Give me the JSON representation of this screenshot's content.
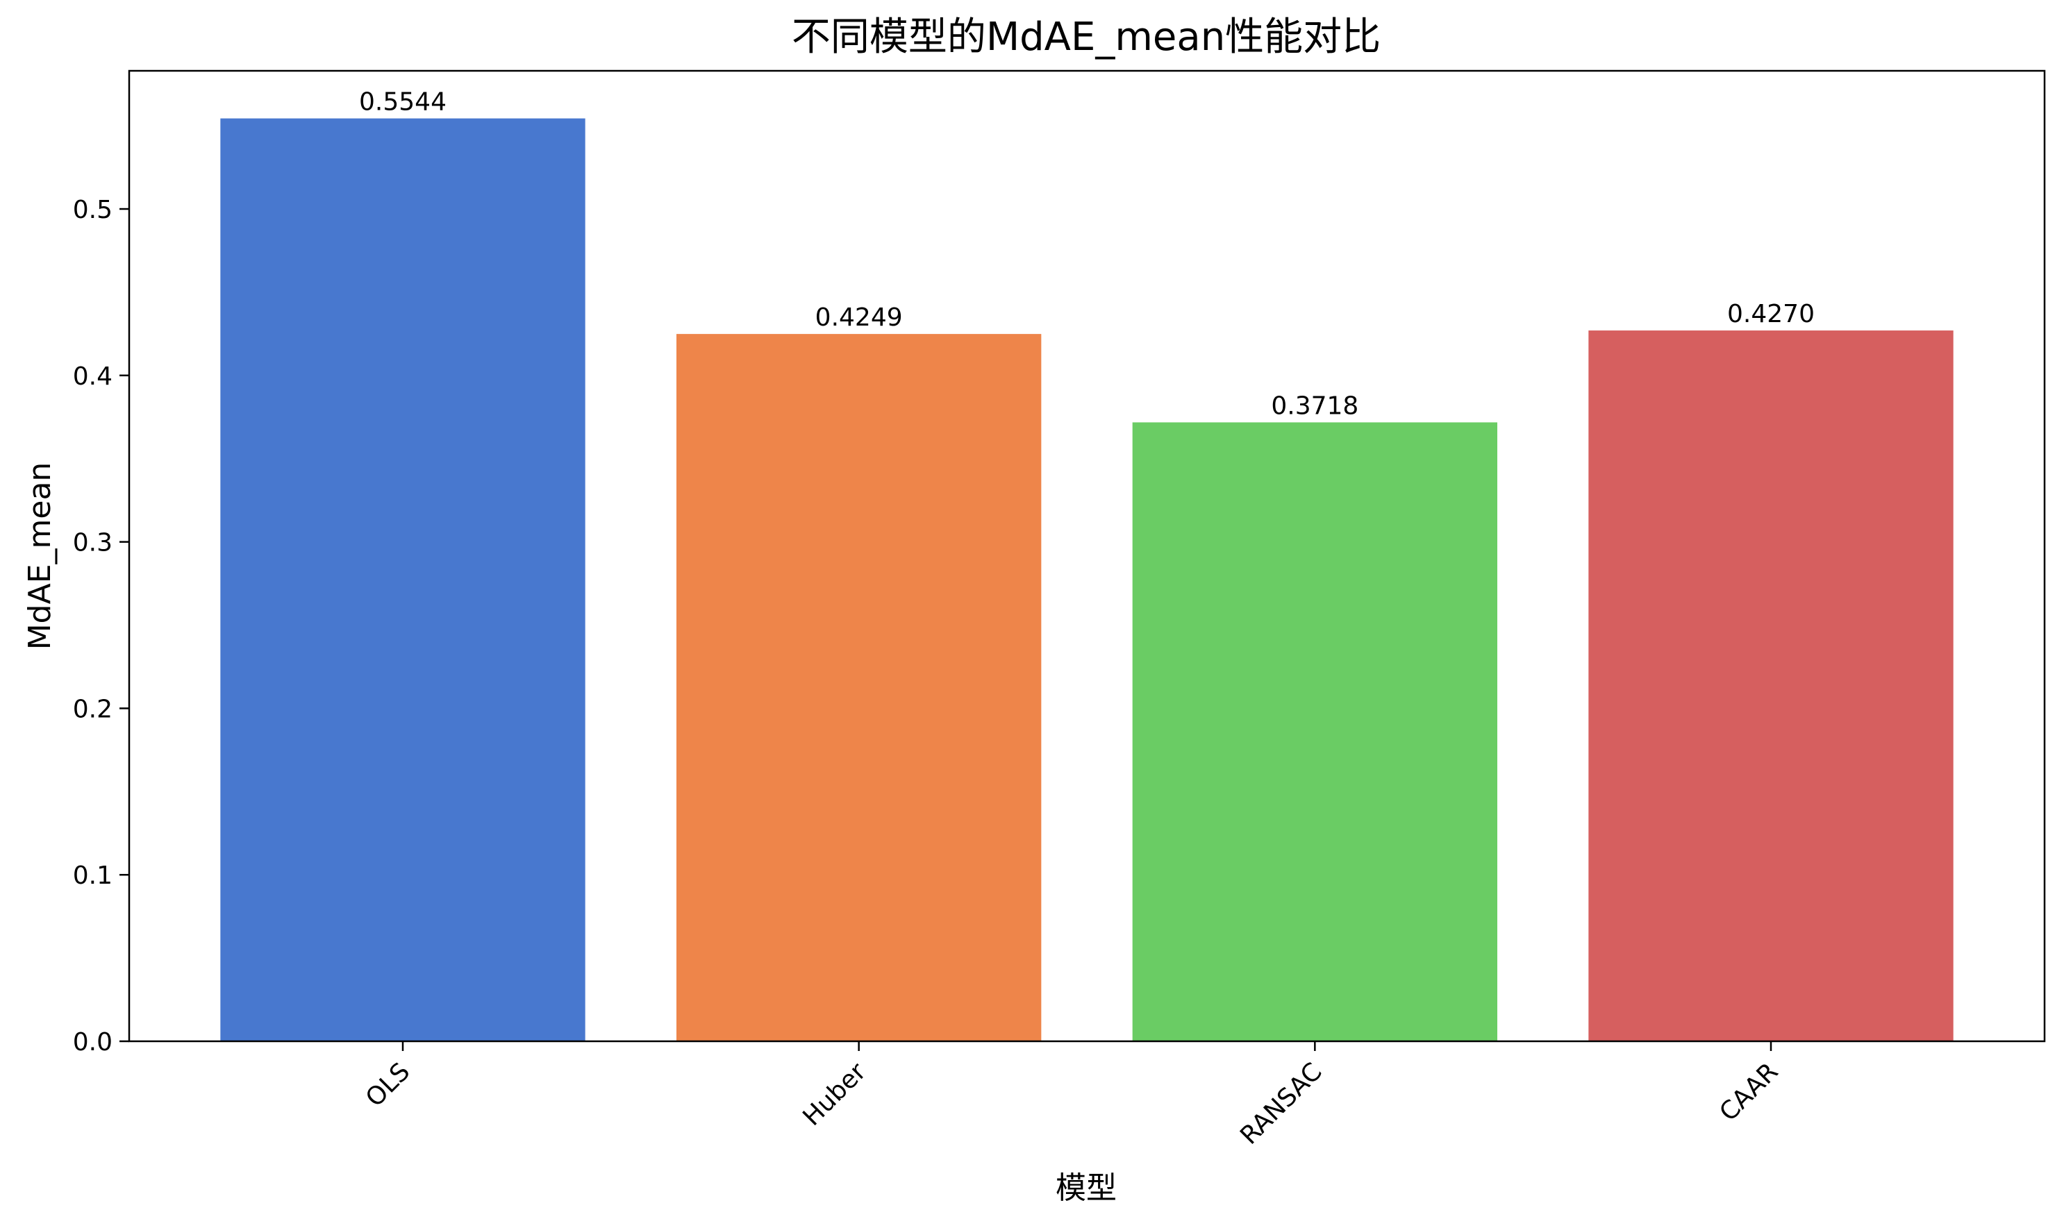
{
  "chart_data": {
    "type": "bar",
    "title": "不同模型的MdAE_mean性能对比",
    "xlabel": "模型",
    "ylabel": "MdAE_mean",
    "categories": [
      "OLS",
      "Huber",
      "RANSAC",
      "CAAR"
    ],
    "values": [
      0.5544,
      0.4249,
      0.3718,
      0.427
    ],
    "value_labels": [
      "0.5544",
      "0.4249",
      "0.3718",
      "0.4270"
    ],
    "colors": [
      "#4878cf",
      "#ee854a",
      "#6acc64",
      "#d65f5f"
    ],
    "ylim": [
      0,
      0.583
    ],
    "yticks": [
      0.0,
      0.1,
      0.2,
      0.3,
      0.4,
      0.5
    ],
    "ytick_labels": [
      "0.0",
      "0.1",
      "0.2",
      "0.3",
      "0.4",
      "0.5"
    ],
    "xtick_rotation": 45,
    "grid": false,
    "legend": "none"
  }
}
